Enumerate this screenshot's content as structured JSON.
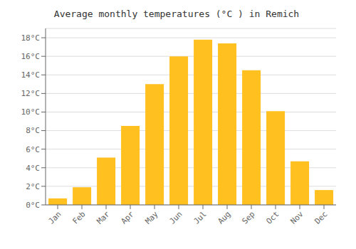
{
  "chart_data": {
    "type": "bar",
    "title": "Average monthly temperatures (°C ) in Remich",
    "categories": [
      "Jan",
      "Feb",
      "Mar",
      "Apr",
      "May",
      "Jun",
      "Jul",
      "Aug",
      "Sep",
      "Oct",
      "Nov",
      "Dec"
    ],
    "values": [
      0.7,
      1.9,
      5.1,
      8.5,
      13.0,
      16.0,
      17.8,
      17.4,
      14.5,
      10.1,
      4.7,
      1.6
    ],
    "color": "#FFC020",
    "ylim": [
      0,
      19
    ],
    "yticks": [
      {
        "value": 0,
        "label": "0°C"
      },
      {
        "value": 2,
        "label": "2°C"
      },
      {
        "value": 4,
        "label": "4°C"
      },
      {
        "value": 6,
        "label": "6°C"
      },
      {
        "value": 8,
        "label": "8°C"
      },
      {
        "value": 10,
        "label": "10°C"
      },
      {
        "value": 12,
        "label": "12°C"
      },
      {
        "value": 14,
        "label": "14°C"
      },
      {
        "value": 16,
        "label": "16°C"
      },
      {
        "value": 18,
        "label": "18°C"
      }
    ],
    "grid": true
  }
}
